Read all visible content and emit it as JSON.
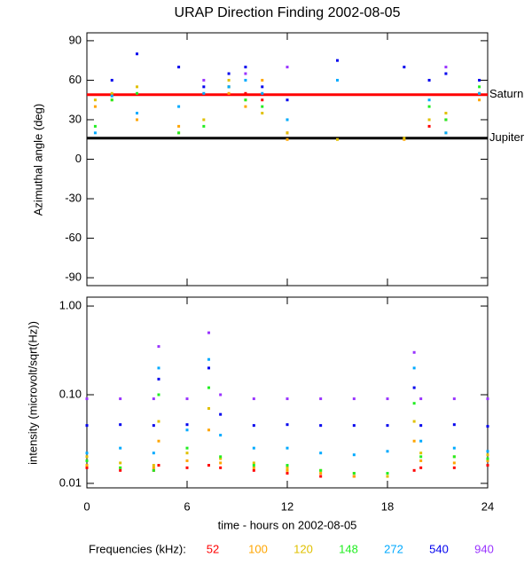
{
  "chart_data": [
    {
      "type": "scatter",
      "title": "URAP Direction Finding  2002-08-05",
      "y_label": "Azimuthal angle (deg)",
      "x": [
        0.5,
        1.5,
        3,
        5.5,
        7,
        8.5,
        9.5,
        10.5,
        12,
        15,
        19,
        20.5,
        21.5,
        23.5
      ],
      "series": [
        {
          "color": "#ff0000",
          "values": [
            null,
            null,
            null,
            null,
            null,
            55,
            50,
            45,
            20,
            null,
            null,
            25,
            30,
            null
          ]
        },
        {
          "color": "#ffa500",
          "values": [
            40,
            45,
            30,
            25,
            null,
            50,
            40,
            60,
            15,
            null,
            15,
            null,
            20,
            45
          ]
        },
        {
          "color": "#e0c000",
          "values": [
            45,
            50,
            55,
            20,
            30,
            60,
            45,
            35,
            20,
            15,
            16,
            30,
            35,
            50
          ]
        },
        {
          "color": "#22ee22",
          "values": [
            25,
            45,
            50,
            20,
            25,
            55,
            45,
            40,
            30,
            null,
            null,
            40,
            30,
            55
          ]
        },
        {
          "color": "#00aaff",
          "values": [
            20,
            48,
            35,
            40,
            50,
            55,
            60,
            50,
            30,
            60,
            null,
            45,
            20,
            50
          ]
        },
        {
          "color": "#0000ee",
          "values": [
            null,
            60,
            80,
            70,
            55,
            65,
            70,
            55,
            45,
            75,
            70,
            60,
            65,
            60
          ]
        },
        {
          "color": "#9933ff",
          "values": [
            null,
            null,
            null,
            null,
            60,
            null,
            65,
            null,
            70,
            null,
            null,
            null,
            70,
            null
          ]
        }
      ],
      "reference_lines": [
        {
          "name": "Saturn",
          "value": 49,
          "color": "#ff0000"
        },
        {
          "name": "Jupiter",
          "value": 16,
          "color": "#000000"
        }
      ],
      "xlim": [
        0,
        24
      ],
      "xticks": [
        0,
        6,
        12,
        18,
        24
      ],
      "ylim": [
        -96,
        96
      ],
      "yticks": [
        -90,
        -60,
        -30,
        0,
        30,
        60,
        90
      ]
    },
    {
      "type": "scatter",
      "y_label": "intensity (microvolt/sqrt(Hz))",
      "x_label": "time - hours on 2002-08-05",
      "legend_title": "Frequencies (kHz):",
      "log_y": true,
      "x": [
        0,
        2,
        4,
        4.3,
        6,
        7.3,
        8,
        10,
        12,
        14,
        16,
        18,
        19.6,
        20,
        22,
        24
      ],
      "series": [
        {
          "name": "52",
          "color": "#ff0000",
          "values": [
            0.015,
            0.014,
            0.014,
            0.016,
            0.015,
            0.016,
            0.015,
            0.014,
            0.013,
            0.012,
            0.012,
            0.012,
            0.014,
            0.015,
            0.015,
            0.016
          ]
        },
        {
          "name": "100",
          "color": "#ffa500",
          "values": [
            0.016,
            0.015,
            0.015,
            0.03,
            0.018,
            0.04,
            0.017,
            0.015,
            0.014,
            0.013,
            0.012,
            0.012,
            0.03,
            0.018,
            0.017,
            0.018
          ]
        },
        {
          "name": "120",
          "color": "#e0c000",
          "values": [
            0.02,
            0.017,
            0.016,
            0.05,
            0.022,
            0.07,
            0.019,
            0.017,
            0.015,
            0.014,
            0.013,
            0.012,
            0.05,
            0.022,
            0.02,
            0.021
          ]
        },
        {
          "name": "148",
          "color": "#22ee22",
          "values": [
            0.018,
            0.015,
            0.014,
            0.1,
            0.025,
            0.12,
            0.02,
            0.016,
            0.016,
            0.014,
            0.013,
            0.013,
            0.08,
            0.02,
            0.02,
            0.019
          ]
        },
        {
          "name": "272",
          "color": "#00aaff",
          "values": [
            0.022,
            0.025,
            0.022,
            0.2,
            0.04,
            0.25,
            0.035,
            0.025,
            0.025,
            0.022,
            0.021,
            0.023,
            0.2,
            0.03,
            0.025,
            0.023
          ]
        },
        {
          "name": "540",
          "color": "#0000ee",
          "values": [
            0.045,
            0.046,
            0.045,
            0.15,
            0.046,
            0.2,
            0.06,
            0.045,
            0.046,
            0.045,
            0.045,
            0.045,
            0.12,
            0.045,
            0.046,
            0.044
          ]
        },
        {
          "name": "940",
          "color": "#9933ff",
          "values": [
            0.09,
            0.09,
            0.09,
            0.35,
            0.09,
            0.5,
            0.1,
            0.09,
            0.09,
            0.09,
            0.09,
            0.09,
            0.3,
            0.09,
            0.09,
            0.09
          ]
        }
      ],
      "xlim": [
        0,
        24
      ],
      "xticks": [
        0,
        6,
        12,
        18,
        24
      ],
      "ylim": [
        0.0089,
        1.26
      ],
      "yticks": [
        {
          "value": 0.01,
          "label": "0.01"
        },
        {
          "value": 0.1,
          "label": "0.10"
        },
        {
          "value": 1,
          "label": "1.00"
        }
      ]
    }
  ]
}
